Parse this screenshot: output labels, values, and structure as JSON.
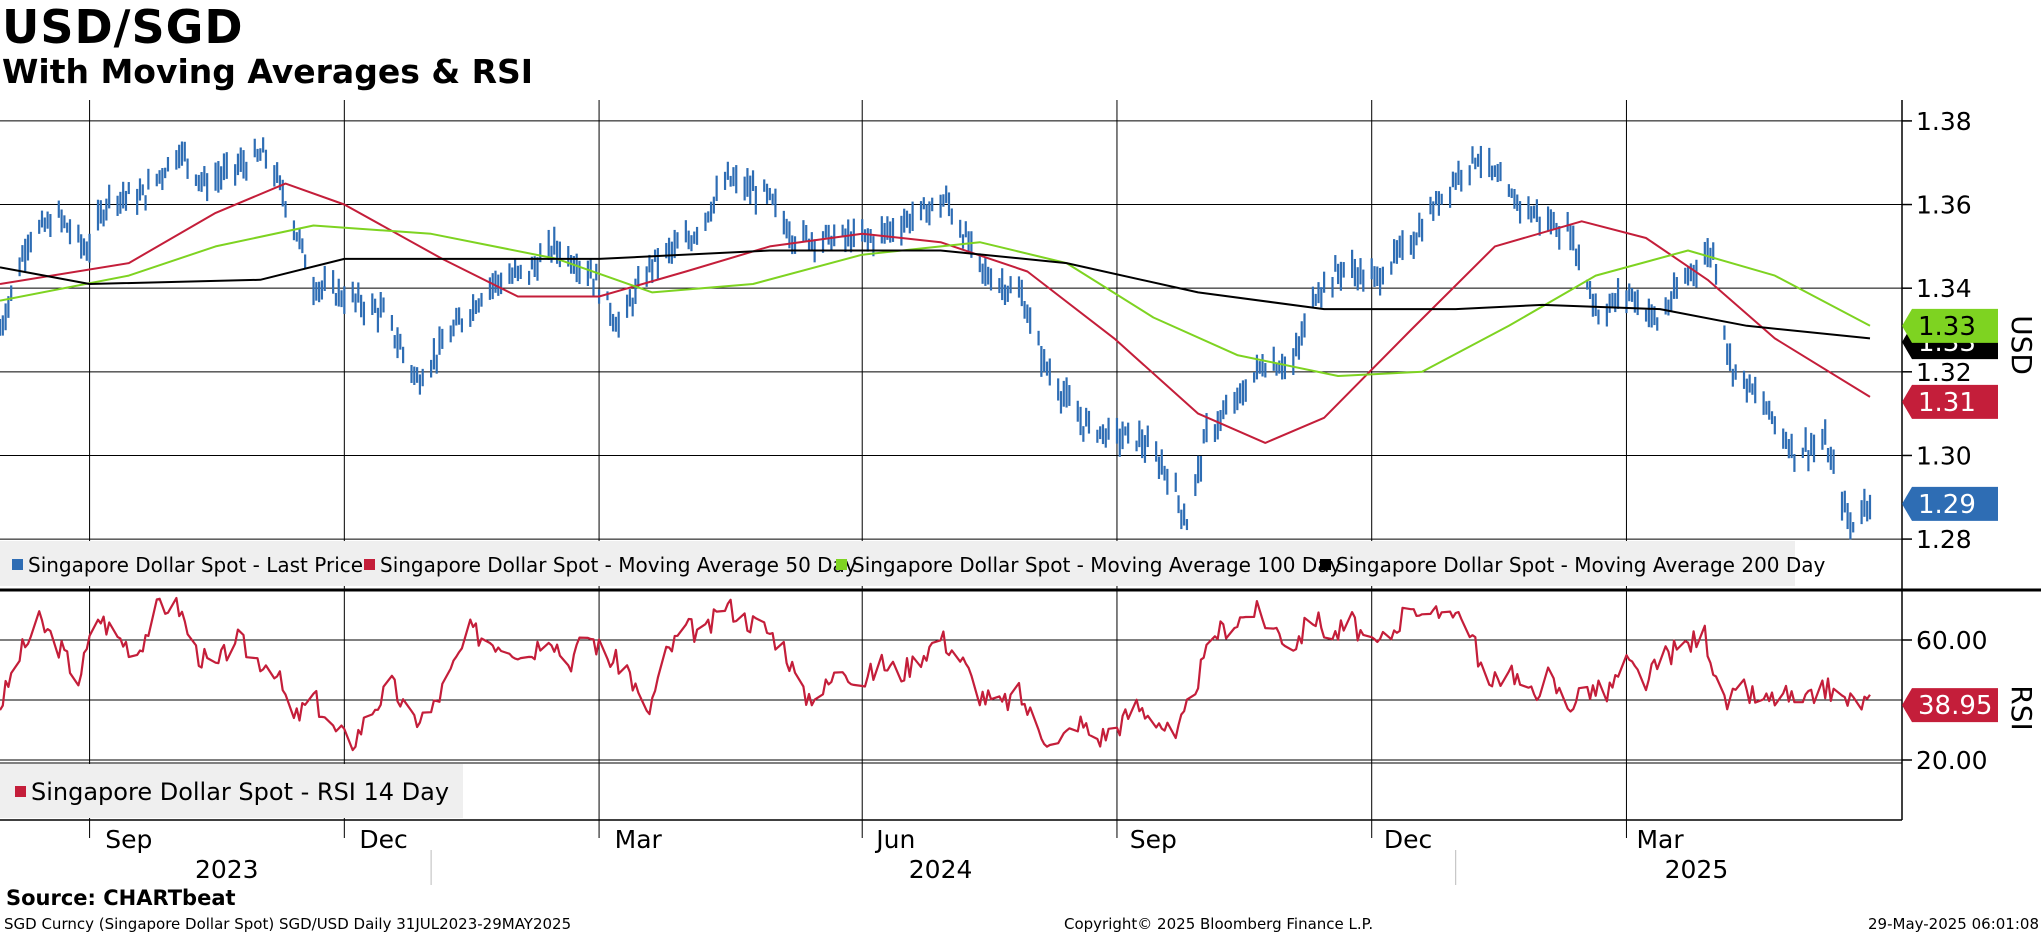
{
  "title": "USD/SGD",
  "subtitle": "With Moving Averages & RSI",
  "source": "Source: CHARTbeat",
  "footer": {
    "left": "SGD Curncy (Singapore Dollar Spot) SGD/USD  Daily 31JUL2023-29MAY2025",
    "center": "Copyright© 2025 Bloomberg Finance L.P.",
    "right": "29-May-2025 06:01:08"
  },
  "chart_data": [
    {
      "type": "line",
      "ylabel": "USD",
      "ylim": [
        1.275,
        1.385
      ],
      "yticks": [
        "1.28",
        "1.30",
        "1.32",
        "1.34",
        "1.36",
        "1.38"
      ],
      "grid": true,
      "legend_position": "bottom-left",
      "x_range": [
        "2023-07-31",
        "2025-05-29"
      ],
      "series": [
        {
          "name": "Singapore Dollar Spot - Last Price",
          "color": "#2e6db4",
          "style": "ohlc-bars",
          "last_value_label": "1.29",
          "points": [
            [
              "2023-07-31",
              1.33
            ],
            [
              "2023-08-10",
              1.352
            ],
            [
              "2023-08-21",
              1.357
            ],
            [
              "2023-08-31",
              1.349
            ],
            [
              "2023-09-08",
              1.362
            ],
            [
              "2023-09-20",
              1.362
            ],
            [
              "2023-10-03",
              1.373
            ],
            [
              "2023-10-12",
              1.365
            ],
            [
              "2023-10-24",
              1.369
            ],
            [
              "2023-11-03",
              1.372
            ],
            [
              "2023-11-10",
              1.361
            ],
            [
              "2023-11-20",
              1.341
            ],
            [
              "2023-12-05",
              1.337
            ],
            [
              "2023-12-15",
              1.334
            ],
            [
              "2023-12-27",
              1.318
            ],
            [
              "2024-01-08",
              1.329
            ],
            [
              "2024-01-22",
              1.341
            ],
            [
              "2024-02-05",
              1.344
            ],
            [
              "2024-02-14",
              1.35
            ],
            [
              "2024-02-27",
              1.344
            ],
            [
              "2024-03-08",
              1.331
            ],
            [
              "2024-03-20",
              1.346
            ],
            [
              "2024-04-03",
              1.352
            ],
            [
              "2024-04-16",
              1.366
            ],
            [
              "2024-04-30",
              1.362
            ],
            [
              "2024-05-10",
              1.352
            ],
            [
              "2024-05-24",
              1.352
            ],
            [
              "2024-06-07",
              1.352
            ],
            [
              "2024-06-21",
              1.357
            ],
            [
              "2024-07-03",
              1.361
            ],
            [
              "2024-07-16",
              1.344
            ],
            [
              "2024-07-30",
              1.338
            ],
            [
              "2024-08-07",
              1.322
            ],
            [
              "2024-08-20",
              1.308
            ],
            [
              "2024-08-30",
              1.305
            ],
            [
              "2024-09-10",
              1.304
            ],
            [
              "2024-09-20",
              1.296
            ],
            [
              "2024-09-27",
              1.284
            ],
            [
              "2024-10-04",
              1.305
            ],
            [
              "2024-10-15",
              1.313
            ],
            [
              "2024-10-24",
              1.322
            ],
            [
              "2024-11-04",
              1.322
            ],
            [
              "2024-11-12",
              1.339
            ],
            [
              "2024-11-22",
              1.345
            ],
            [
              "2024-12-03",
              1.342
            ],
            [
              "2024-12-16",
              1.351
            ],
            [
              "2024-12-30",
              1.365
            ],
            [
              "2025-01-09",
              1.372
            ],
            [
              "2025-01-20",
              1.362
            ],
            [
              "2025-01-31",
              1.357
            ],
            [
              "2025-02-11",
              1.353
            ],
            [
              "2025-02-21",
              1.334
            ],
            [
              "2025-03-04",
              1.339
            ],
            [
              "2025-03-14",
              1.332
            ],
            [
              "2025-03-27",
              1.345
            ],
            [
              "2025-04-03",
              1.349
            ],
            [
              "2025-04-09",
              1.322
            ],
            [
              "2025-04-21",
              1.312
            ],
            [
              "2025-05-02",
              1.301
            ],
            [
              "2025-05-13",
              1.303
            ],
            [
              "2025-05-22",
              1.283
            ],
            [
              "2025-05-29",
              1.29
            ]
          ]
        },
        {
          "name": "Singapore Dollar Spot - Moving Average 50 Day",
          "color": "#c41e3a",
          "last_value_label": "1.31",
          "points": [
            [
              "2023-07-31",
              1.341
            ],
            [
              "2023-09-15",
              1.346
            ],
            [
              "2023-10-16",
              1.358
            ],
            [
              "2023-11-10",
              1.365
            ],
            [
              "2023-12-01",
              1.36
            ],
            [
              "2024-01-05",
              1.347
            ],
            [
              "2024-02-01",
              1.338
            ],
            [
              "2024-03-01",
              1.338
            ],
            [
              "2024-04-01",
              1.344
            ],
            [
              "2024-05-01",
              1.35
            ],
            [
              "2024-06-03",
              1.353
            ],
            [
              "2024-07-01",
              1.351
            ],
            [
              "2024-08-01",
              1.344
            ],
            [
              "2024-09-01",
              1.328
            ],
            [
              "2024-10-01",
              1.31
            ],
            [
              "2024-10-25",
              1.303
            ],
            [
              "2024-11-15",
              1.309
            ],
            [
              "2024-12-16",
              1.33
            ],
            [
              "2025-01-15",
              1.35
            ],
            [
              "2025-02-15",
              1.356
            ],
            [
              "2025-03-10",
              1.352
            ],
            [
              "2025-04-01",
              1.342
            ],
            [
              "2025-04-25",
              1.328
            ],
            [
              "2025-05-29",
              1.314
            ]
          ]
        },
        {
          "name": "Singapore Dollar Spot - Moving Average 100 Day",
          "color": "#7ed321",
          "last_value_label": "1.33",
          "points": [
            [
              "2023-07-31",
              1.337
            ],
            [
              "2023-09-15",
              1.343
            ],
            [
              "2023-10-16",
              1.35
            ],
            [
              "2023-11-20",
              1.355
            ],
            [
              "2024-01-01",
              1.353
            ],
            [
              "2024-02-15",
              1.347
            ],
            [
              "2024-03-20",
              1.339
            ],
            [
              "2024-04-25",
              1.341
            ],
            [
              "2024-06-03",
              1.348
            ],
            [
              "2024-07-15",
              1.351
            ],
            [
              "2024-08-15",
              1.346
            ],
            [
              "2024-09-15",
              1.333
            ],
            [
              "2024-10-15",
              1.324
            ],
            [
              "2024-11-20",
              1.319
            ],
            [
              "2024-12-20",
              1.32
            ],
            [
              "2025-01-20",
              1.331
            ],
            [
              "2025-02-20",
              1.343
            ],
            [
              "2025-03-25",
              1.349
            ],
            [
              "2025-04-25",
              1.343
            ],
            [
              "2025-05-29",
              1.331
            ]
          ]
        },
        {
          "name": "Singapore Dollar Spot - Moving Average 200 Day",
          "color": "#000000",
          "last_value_label": "1.33",
          "points": [
            [
              "2023-07-31",
              1.345
            ],
            [
              "2023-09-01",
              1.341
            ],
            [
              "2023-11-01",
              1.342
            ],
            [
              "2023-12-01",
              1.347
            ],
            [
              "2024-03-01",
              1.347
            ],
            [
              "2024-05-01",
              1.349
            ],
            [
              "2024-07-01",
              1.349
            ],
            [
              "2024-08-15",
              1.346
            ],
            [
              "2024-10-01",
              1.339
            ],
            [
              "2024-11-15",
              1.335
            ],
            [
              "2025-01-01",
              1.335
            ],
            [
              "2025-02-01",
              1.336
            ],
            [
              "2025-03-15",
              1.335
            ],
            [
              "2025-04-15",
              1.331
            ],
            [
              "2025-05-29",
              1.328
            ]
          ]
        }
      ]
    },
    {
      "type": "line",
      "ylabel": "RSI",
      "ylim": [
        0,
        75
      ],
      "yticks": [
        "20.00",
        "60.00"
      ],
      "grid": true,
      "legend_position": "bottom-left",
      "series": [
        {
          "name": "Singapore Dollar Spot - RSI 14 Day",
          "color": "#c41e3a",
          "last_value_label": "38.95",
          "points": [
            [
              "2023-07-31",
              38
            ],
            [
              "2023-08-07",
              55
            ],
            [
              "2023-08-14",
              66
            ],
            [
              "2023-08-21",
              58
            ],
            [
              "2023-08-28",
              47
            ],
            [
              "2023-09-04",
              68
            ],
            [
              "2023-09-11",
              61
            ],
            [
              "2023-09-18",
              56
            ],
            [
              "2023-09-25",
              70
            ],
            [
              "2023-10-02",
              73
            ],
            [
              "2023-10-09",
              56
            ],
            [
              "2023-10-16",
              50
            ],
            [
              "2023-10-23",
              61
            ],
            [
              "2023-10-30",
              54
            ],
            [
              "2023-11-06",
              51
            ],
            [
              "2023-11-13",
              33
            ],
            [
              "2023-11-20",
              41
            ],
            [
              "2023-11-27",
              30
            ],
            [
              "2023-12-04",
              26
            ],
            [
              "2023-12-11",
              37
            ],
            [
              "2023-12-18",
              45
            ],
            [
              "2023-12-25",
              33
            ],
            [
              "2024-01-01",
              36
            ],
            [
              "2024-01-08",
              49
            ],
            [
              "2024-01-15",
              63
            ],
            [
              "2024-01-22",
              60
            ],
            [
              "2024-01-29",
              58
            ],
            [
              "2024-02-05",
              55
            ],
            [
              "2024-02-12",
              63
            ],
            [
              "2024-02-19",
              52
            ],
            [
              "2024-02-26",
              62
            ],
            [
              "2024-03-04",
              54
            ],
            [
              "2024-03-11",
              51
            ],
            [
              "2024-03-18",
              34
            ],
            [
              "2024-03-25",
              55
            ],
            [
              "2024-04-01",
              64
            ],
            [
              "2024-04-08",
              62
            ],
            [
              "2024-04-15",
              72
            ],
            [
              "2024-04-22",
              67
            ],
            [
              "2024-04-29",
              64
            ],
            [
              "2024-05-06",
              58
            ],
            [
              "2024-05-13",
              41
            ],
            [
              "2024-05-20",
              43
            ],
            [
              "2024-05-27",
              51
            ],
            [
              "2024-06-03",
              46
            ],
            [
              "2024-06-10",
              52
            ],
            [
              "2024-06-17",
              49
            ],
            [
              "2024-06-24",
              55
            ],
            [
              "2024-07-01",
              61
            ],
            [
              "2024-07-08",
              54
            ],
            [
              "2024-07-15",
              42
            ],
            [
              "2024-07-22",
              38
            ],
            [
              "2024-07-29",
              42
            ],
            [
              "2024-08-05",
              30
            ],
            [
              "2024-08-12",
              25
            ],
            [
              "2024-08-19",
              33
            ],
            [
              "2024-08-26",
              27
            ],
            [
              "2024-09-02",
              31
            ],
            [
              "2024-09-09",
              38
            ],
            [
              "2024-09-16",
              34
            ],
            [
              "2024-09-23",
              26
            ],
            [
              "2024-09-30",
              45
            ],
            [
              "2024-10-07",
              62
            ],
            [
              "2024-10-14",
              66
            ],
            [
              "2024-10-21",
              70
            ],
            [
              "2024-10-28",
              64
            ],
            [
              "2024-11-04",
              58
            ],
            [
              "2024-11-11",
              68
            ],
            [
              "2024-11-18",
              61
            ],
            [
              "2024-11-25",
              66
            ],
            [
              "2024-12-02",
              57
            ],
            [
              "2024-12-09",
              62
            ],
            [
              "2024-12-16",
              73
            ],
            [
              "2024-12-23",
              66
            ],
            [
              "2024-12-30",
              72
            ],
            [
              "2025-01-06",
              64
            ],
            [
              "2025-01-13",
              43
            ],
            [
              "2025-01-20",
              52
            ],
            [
              "2025-01-27",
              41
            ],
            [
              "2025-02-03",
              48
            ],
            [
              "2025-02-10",
              38
            ],
            [
              "2025-02-17",
              44
            ],
            [
              "2025-02-24",
              42
            ],
            [
              "2025-03-03",
              52
            ],
            [
              "2025-03-10",
              46
            ],
            [
              "2025-03-17",
              55
            ],
            [
              "2025-03-24",
              58
            ],
            [
              "2025-03-31",
              62
            ],
            [
              "2025-04-07",
              38
            ],
            [
              "2025-04-14",
              43
            ],
            [
              "2025-04-21",
              39
            ],
            [
              "2025-04-28",
              42
            ],
            [
              "2025-05-05",
              37
            ],
            [
              "2025-05-12",
              45
            ],
            [
              "2025-05-19",
              40
            ],
            [
              "2025-05-29",
              38.95
            ]
          ]
        }
      ]
    }
  ],
  "x_axis": {
    "month_labels": [
      {
        "label": "Sep",
        "date": "2023-09-15"
      },
      {
        "label": "Dec",
        "date": "2023-12-15"
      },
      {
        "label": "Mar",
        "date": "2024-03-15"
      },
      {
        "label": "Jun",
        "date": "2024-06-15"
      },
      {
        "label": "Sep",
        "date": "2024-09-15"
      },
      {
        "label": "Dec",
        "date": "2024-12-15"
      },
      {
        "label": "Mar",
        "date": "2025-03-15"
      }
    ],
    "gridlines": [
      "2023-09-01",
      "2023-12-01",
      "2024-03-01",
      "2024-06-03",
      "2024-09-02",
      "2024-12-02",
      "2025-03-03"
    ],
    "year_labels": [
      {
        "label": "2023",
        "date": "2023-10-20"
      },
      {
        "label": "2024",
        "date": "2024-07-01"
      },
      {
        "label": "2025",
        "date": "2025-03-28"
      }
    ],
    "year_dividers": [
      "2024-01-01",
      "2025-01-01"
    ]
  }
}
